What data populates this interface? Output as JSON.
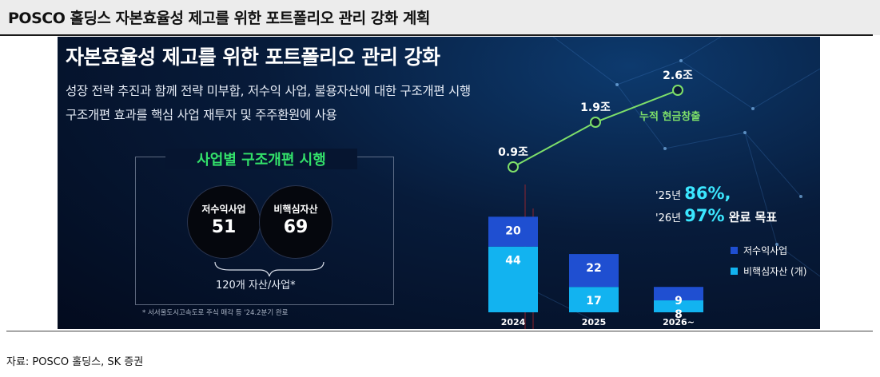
{
  "header": {
    "title": "POSCO 홀딩스 자본효율성 제고를 위한 포트폴리오 관리 강화 계획"
  },
  "panel": {
    "title": "자본효율성 제고를 위한 포트폴리오 관리 강화",
    "lines": [
      "성장 전략 추진과 함께 전략 미부합, 저수익 사업, 불용자산에 대한 구조개편 시행",
      "구조개편 효과를 핵심 사업 재투자 및 주주환원에 사용"
    ],
    "box": {
      "title": "사업별 구조개편 시행",
      "left_label": "저수익사업",
      "left_value": "51",
      "right_label": "비핵심자산",
      "right_value": "69",
      "total": "120개 자산/사업*"
    },
    "footnote": "* 서서울도시고속도로 주식 매각 등 '24.2분기 완료",
    "targets": {
      "line1_prefix": "'25년 ",
      "line1_value": "86%,",
      "line2_prefix": "'26년 ",
      "line2_value": "97%",
      "line2_suffix": " 완료 목표"
    }
  },
  "chart_data": {
    "type": "bar",
    "stacked": true,
    "categories": [
      "2024",
      "2025",
      "2026~"
    ],
    "series": [
      {
        "name": "저수익사업",
        "values": [
          20,
          22,
          9
        ],
        "color": "#1f4fd1"
      },
      {
        "name": "비핵심자산 (개)",
        "values": [
          44,
          17,
          8
        ],
        "color": "#12b3f0"
      }
    ],
    "line": {
      "name": "누적 현금창출",
      "values": [
        0.9,
        1.9,
        2.6
      ],
      "labels": [
        "0.9조",
        "1.9조",
        "2.6조"
      ],
      "color": "#7ee06a"
    },
    "legend_position": "right"
  },
  "source": "자료: POSCO 홀딩스, SK 증권"
}
